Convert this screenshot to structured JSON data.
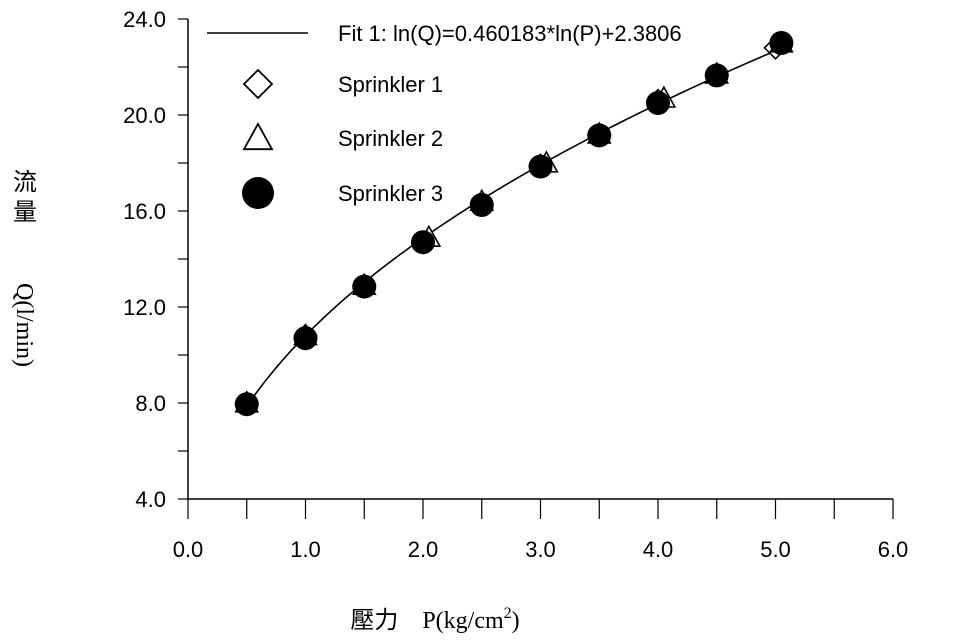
{
  "chart_data": {
    "type": "scatter",
    "title": "",
    "xlabel": "壓力　P(kg/cm",
    "xlabel_sup": "2",
    "xlabel_end": ")",
    "ylabel_cjk": [
      "流",
      "量"
    ],
    "ylabel": "Q(l/min)",
    "xlim": [
      0.0,
      6.0
    ],
    "ylim": [
      4.0,
      24.0
    ],
    "x_ticks": [
      "0.0",
      "1.0",
      "2.0",
      "3.0",
      "4.0",
      "5.0",
      "6.0"
    ],
    "y_ticks": [
      "4.0",
      "8.0",
      "12.0",
      "16.0",
      "20.0",
      "24.0"
    ],
    "grid": false,
    "legend_position": "top-left",
    "fit": {
      "name": "Fit 1:   ln(Q)=0.460183*ln(P)+2.3806",
      "slope": 0.460183,
      "intercept": 2.3806,
      "x_range": [
        0.5,
        5.05
      ]
    },
    "series": [
      {
        "name": "Sprinkler 1",
        "marker": "diamond",
        "x": [
          0.5,
          1.0,
          1.5,
          2.0,
          2.5,
          3.0,
          3.5,
          4.0,
          4.5,
          5.0
        ],
        "y": [
          8.0,
          10.8,
          12.9,
          14.7,
          16.3,
          17.9,
          19.2,
          20.6,
          21.7,
          22.8
        ]
      },
      {
        "name": "Sprinkler 2",
        "marker": "triangle",
        "x": [
          0.5,
          1.0,
          1.5,
          2.05,
          2.5,
          3.05,
          3.5,
          4.05,
          4.5,
          5.05
        ],
        "y": [
          8.0,
          10.8,
          12.9,
          14.9,
          16.4,
          18.0,
          19.2,
          20.7,
          21.7,
          23.0
        ]
      },
      {
        "name": "Sprinkler 3",
        "marker": "circle",
        "x": [
          0.5,
          1.0,
          1.5,
          2.0,
          2.5,
          3.0,
          3.5,
          4.0,
          4.5,
          5.05
        ],
        "y": [
          7.95,
          10.7,
          12.85,
          14.7,
          16.25,
          17.85,
          19.15,
          20.5,
          21.65,
          23.0
        ]
      }
    ]
  }
}
